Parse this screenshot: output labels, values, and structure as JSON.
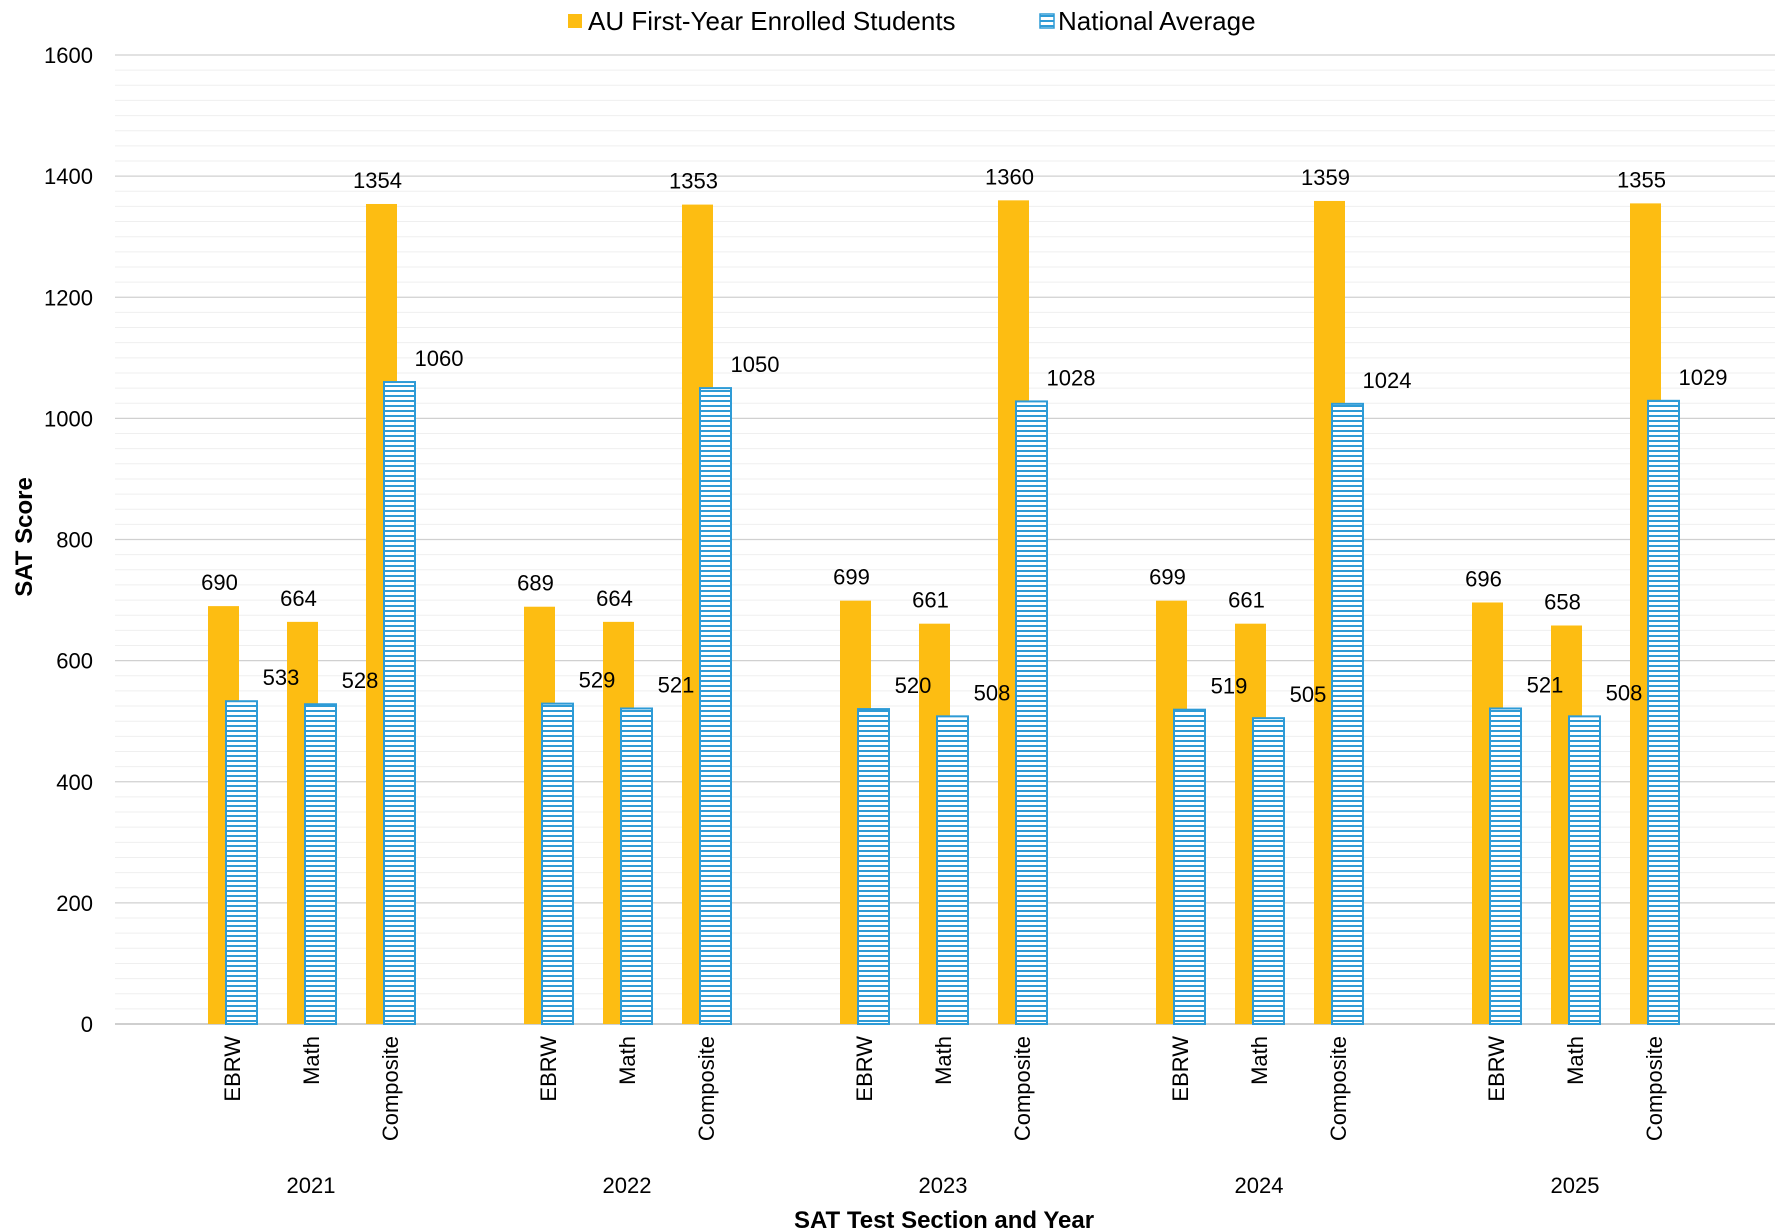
{
  "chart_data": {
    "type": "bar",
    "title": "",
    "xlabel": "SAT Test Section and Year",
    "ylabel": "SAT Score",
    "ylim": [
      0,
      1600
    ],
    "ytick_step": 200,
    "grid": true,
    "legend_position": "top",
    "groups": [
      {
        "year": "2021",
        "categories": [
          "EBRW",
          "Math",
          "Composite"
        ]
      },
      {
        "year": "2022",
        "categories": [
          "EBRW",
          "Math",
          "Composite"
        ]
      },
      {
        "year": "2023",
        "categories": [
          "EBRW",
          "Math",
          "Composite"
        ]
      },
      {
        "year": "2024",
        "categories": [
          "EBRW",
          "Math",
          "Composite"
        ]
      },
      {
        "year": "2025",
        "categories": [
          "EBRW",
          "Math",
          "Composite"
        ]
      }
    ],
    "series": [
      {
        "name": "AU First-Year Enrolled Students",
        "color": "#FDBD12",
        "values": [
          690,
          664,
          1354,
          689,
          664,
          1353,
          699,
          661,
          1360,
          699,
          661,
          1359,
          696,
          658,
          1355
        ]
      },
      {
        "name": "National Average",
        "color": "#2E9BD6",
        "pattern": "horizontal-stripes",
        "values": [
          533,
          528,
          1060,
          529,
          521,
          1050,
          520,
          508,
          1028,
          519,
          505,
          1024,
          521,
          508,
          1029
        ]
      }
    ]
  }
}
